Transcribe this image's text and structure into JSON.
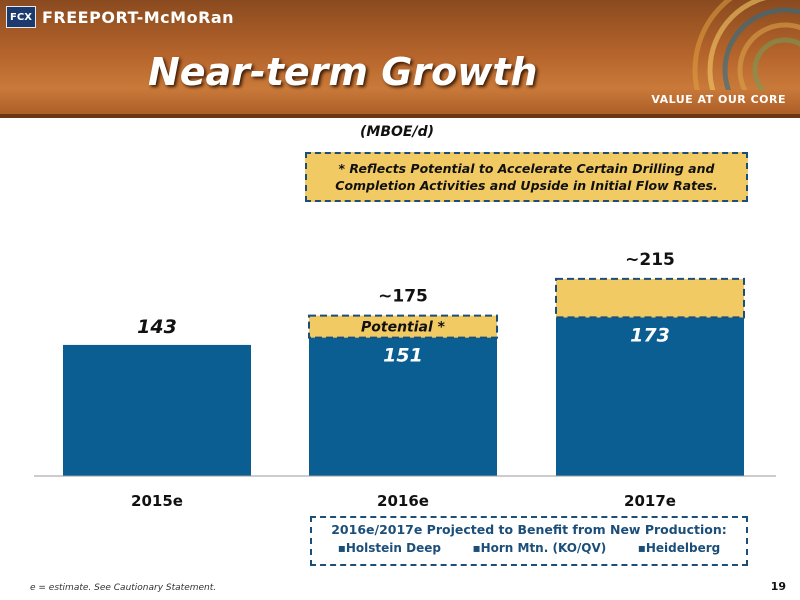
{
  "brand": {
    "logo_mark": "FCX",
    "name": "FREEPORT-McMoRan",
    "tagline": "VALUE AT OUR CORE"
  },
  "slide": {
    "title": "Near-term Growth",
    "page_number": "19",
    "footnote": "e = estimate. See Cautionary Statement."
  },
  "note": "* Reflects Potential to Accelerate Certain Drilling and Completion Activities and Upside in Initial Flow Rates.",
  "callout": {
    "title": "2016e/2017e Projected to Benefit from New Production:",
    "items": [
      "Holstein Deep",
      "Horn Mtn. (KO/QV)",
      "Heidelberg"
    ]
  },
  "colors": {
    "base": "#0b5e91",
    "potential": "#f2ca64",
    "border": "#1b4f7a"
  },
  "chart_data": {
    "type": "bar",
    "ylabel": "(MBOE/d)",
    "categories": [
      "2015e",
      "2016e",
      "2017e"
    ],
    "series": [
      {
        "name": "",
        "values": [
          143,
          151,
          173
        ],
        "labels": [
          "143",
          "151",
          "173"
        ]
      },
      {
        "name": "Potential *",
        "values": [
          0,
          24,
          42
        ],
        "totals": [
          "",
          "~175",
          "~215"
        ]
      }
    ],
    "ylim": [
      0,
      240
    ],
    "grid": false
  }
}
